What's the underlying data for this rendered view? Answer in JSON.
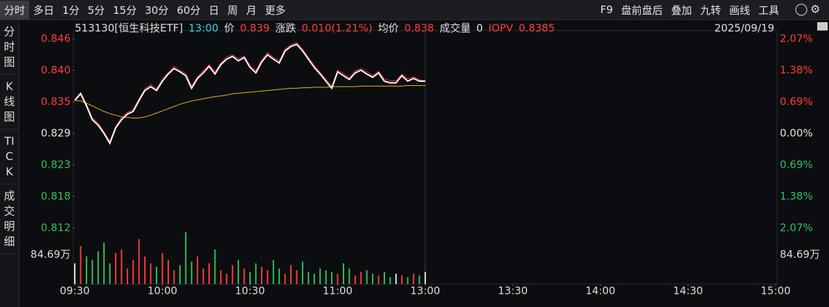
{
  "toolbar": {
    "left": [
      "分时",
      "多日",
      "1分",
      "5分",
      "15分",
      "30分",
      "60分",
      "日",
      "周",
      "月",
      "更多"
    ],
    "right": [
      "F9",
      "盘前盘后",
      "叠加",
      "九转",
      "画线",
      "工具"
    ]
  },
  "side_tabs": [
    "分时图",
    "K线图",
    "TICK",
    "成交明细"
  ],
  "info": {
    "security": "513130[恒生科技ETF]",
    "time": "13:00",
    "price": "0.839",
    "change_label": "涨跌",
    "change": "0.010(1.21%)",
    "avg_price": "0.838",
    "volume_label": "成交量",
    "volume": "0",
    "iopv": "0.8385",
    "date": "2025/09/19"
  },
  "chart_data": {
    "type": "line",
    "x": [
      0,
      2,
      4,
      6,
      8,
      10,
      12,
      14,
      16,
      18,
      20,
      22,
      24,
      26,
      28,
      30,
      32,
      34,
      36,
      38,
      40,
      42,
      44,
      46,
      48,
      50,
      52,
      54,
      56,
      58,
      60,
      62,
      64,
      66,
      68,
      70,
      72,
      74,
      76,
      78,
      80,
      82,
      84,
      86,
      88,
      90,
      92,
      94,
      96,
      98,
      100,
      102,
      104,
      106,
      108,
      110,
      112,
      114,
      116,
      118,
      120
    ],
    "xlim": [
      0,
      240
    ],
    "xticks": [
      {
        "value": 0,
        "label": "09:30"
      },
      {
        "value": 30,
        "label": "10:00"
      },
      {
        "value": 60,
        "label": "10:30"
      },
      {
        "value": 90,
        "label": "11:00"
      },
      {
        "value": 120,
        "label": "13:00"
      },
      {
        "value": 150,
        "label": "13:30"
      },
      {
        "value": 180,
        "label": "14:00"
      },
      {
        "value": 210,
        "label": "14:30"
      },
      {
        "value": 240,
        "label": "15:00"
      }
    ],
    "ylim": [
      0.8118,
      0.8462
    ],
    "yticks": [
      {
        "value": 0.8462,
        "label": "0.846"
      },
      {
        "value": 0.84047,
        "label": "0.840"
      },
      {
        "value": 0.83473,
        "label": "0.835"
      },
      {
        "value": 0.829,
        "label": "0.829"
      },
      {
        "value": 0.82327,
        "label": "0.823"
      },
      {
        "value": 0.81753,
        "label": "0.818"
      },
      {
        "value": 0.8118,
        "label": "0.812"
      }
    ],
    "y2lim": [
      -2.07,
      2.07
    ],
    "y2ticks": [
      {
        "value": 2.07,
        "label": "2.07%"
      },
      {
        "value": 1.38,
        "label": "1.38%"
      },
      {
        "value": 0.69,
        "label": "0.69%"
      },
      {
        "value": 0,
        "label": "0.00%"
      },
      {
        "value": -0.69,
        "label": "0.69%"
      },
      {
        "value": -1.38,
        "label": "1.38%"
      },
      {
        "value": -2.07,
        "label": "2.07%"
      }
    ],
    "series": [
      {
        "name": "价",
        "color": "#ffffff",
        "values": [
          0.835,
          0.8362,
          0.834,
          0.8315,
          0.8305,
          0.829,
          0.8272,
          0.83,
          0.8315,
          0.8325,
          0.833,
          0.835,
          0.8368,
          0.8375,
          0.8368,
          0.8385,
          0.8398,
          0.8408,
          0.8402,
          0.8395,
          0.8372,
          0.839,
          0.84,
          0.8412,
          0.8398,
          0.8415,
          0.8425,
          0.843,
          0.8422,
          0.8428,
          0.841,
          0.84,
          0.842,
          0.8433,
          0.8425,
          0.8418,
          0.844,
          0.8448,
          0.8452,
          0.844,
          0.8425,
          0.841,
          0.8398,
          0.8385,
          0.8372,
          0.8402,
          0.8395,
          0.8388,
          0.84,
          0.8405,
          0.8398,
          0.8392,
          0.84,
          0.8385,
          0.8382,
          0.8382,
          0.8395,
          0.8385,
          0.839,
          0.8385,
          0.8385
        ]
      },
      {
        "name": "均价",
        "color": "#e8b820",
        "values": [
          0.835,
          0.8349,
          0.8345,
          0.834,
          0.8335,
          0.833,
          0.8326,
          0.8323,
          0.832,
          0.8319,
          0.8318,
          0.8318,
          0.832,
          0.8323,
          0.8327,
          0.8331,
          0.8335,
          0.8339,
          0.8343,
          0.8346,
          0.8349,
          0.8351,
          0.8353,
          0.8355,
          0.8357,
          0.8358,
          0.836,
          0.8362,
          0.8363,
          0.8364,
          0.8365,
          0.8366,
          0.8367,
          0.8368,
          0.8369,
          0.837,
          0.8371,
          0.8372,
          0.8372,
          0.8373,
          0.8373,
          0.8374,
          0.8374,
          0.8374,
          0.8375,
          0.8375,
          0.8375,
          0.8375,
          0.8375,
          0.8376,
          0.8376,
          0.8376,
          0.8376,
          0.8376,
          0.8376,
          0.8376,
          0.8376,
          0.8377,
          0.8377,
          0.8377,
          0.8377
        ]
      },
      {
        "name": "IOPV",
        "color": "#e8303a",
        "values": [
          0.8352,
          0.8365,
          0.8344,
          0.8318,
          0.8309,
          0.8293,
          0.8276,
          0.8303,
          0.8319,
          0.8328,
          0.8334,
          0.8353,
          0.8371,
          0.8379,
          0.8371,
          0.8389,
          0.8401,
          0.8412,
          0.8405,
          0.8399,
          0.8376,
          0.8393,
          0.8404,
          0.8415,
          0.8402,
          0.8418,
          0.8429,
          0.8433,
          0.8426,
          0.8431,
          0.8414,
          0.8404,
          0.8423,
          0.8437,
          0.8428,
          0.8422,
          0.8443,
          0.8451,
          0.8455,
          0.8444,
          0.8428,
          0.8414,
          0.8401,
          0.8389,
          0.8376,
          0.8405,
          0.8399,
          0.8391,
          0.8404,
          0.8408,
          0.8402,
          0.8395,
          0.8403,
          0.8389,
          0.8386,
          0.8386,
          0.8398,
          0.8389,
          0.8393,
          0.8388,
          0.8385
        ]
      }
    ],
    "volume": {
      "values": [
        60,
        110,
        80,
        70,
        95,
        120,
        60,
        90,
        100,
        45,
        70,
        130,
        80,
        60,
        50,
        90,
        70,
        40,
        55,
        150,
        65,
        80,
        45,
        60,
        100,
        40,
        30,
        55,
        70,
        45,
        35,
        60,
        50,
        40,
        70,
        45,
        30,
        55,
        40,
        65,
        35,
        30,
        45,
        40,
        35,
        30,
        60,
        45,
        25,
        35,
        40,
        30,
        25,
        35,
        20,
        30,
        25,
        20,
        30,
        25,
        35
      ],
      "ylim": [
        0,
        160
      ],
      "yticks": [
        {
          "value": 84.69,
          "label": "84.69万"
        }
      ]
    }
  }
}
